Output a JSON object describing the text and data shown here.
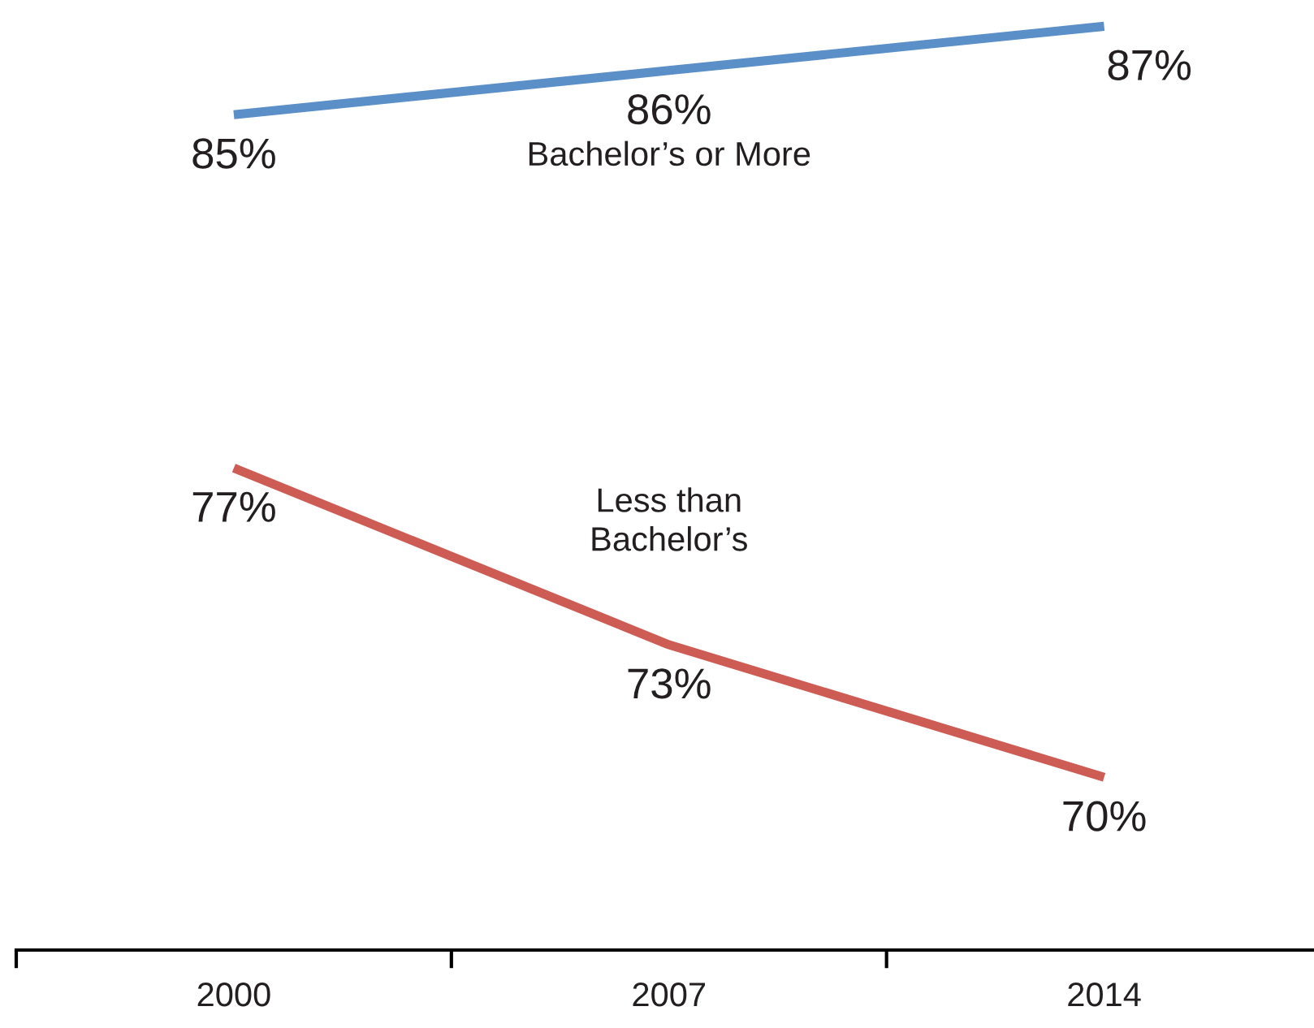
{
  "chart_data": {
    "type": "line",
    "categories": [
      "2000",
      "2007",
      "2014"
    ],
    "series": [
      {
        "name": "Bachelor’s or More",
        "color": "#5b8fc8",
        "values": [
          85,
          86,
          87
        ],
        "value_labels": [
          "85%",
          "86%",
          "87%"
        ]
      },
      {
        "name": "Less than\nBachelor’s",
        "color": "#cd5c55",
        "values": [
          77,
          73,
          70
        ],
        "value_labels": [
          "77%",
          "73%",
          "70%"
        ]
      }
    ],
    "tick_labels": "x",
    "grid": false,
    "legend": false,
    "marker": "none",
    "line_style": "solid"
  }
}
